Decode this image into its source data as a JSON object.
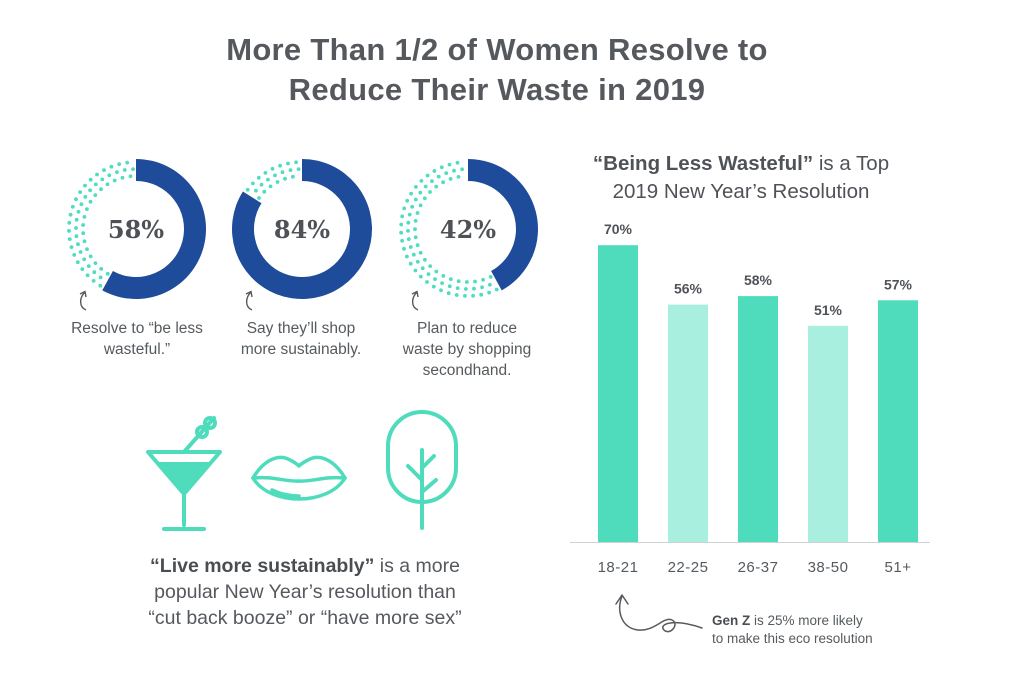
{
  "title": {
    "line1": "More Than 1/2 of Women Resolve to",
    "line2": "Reduce Their Waste in 2019"
  },
  "colors": {
    "navy": "#1f4c9a",
    "dots": "#4fdcc0",
    "bar_dark": "#4fdcbc",
    "bar_light": "#a8efdf",
    "icon": "#4fdcbc",
    "text": "#555a5e"
  },
  "donuts": [
    {
      "value": 58,
      "label": "58%",
      "caption_lines": [
        "Resolve to “be less",
        "wasteful.”"
      ]
    },
    {
      "value": 84,
      "label": "84%",
      "caption_lines": [
        "Say they’ll shop",
        "more sustainably."
      ]
    },
    {
      "value": 42,
      "label": "42%",
      "caption_lines": [
        "Plan to reduce",
        "waste by shopping",
        "secondhand."
      ]
    }
  ],
  "icons": [
    "martini-icon",
    "lips-icon",
    "tree-icon"
  ],
  "quote": {
    "bold": "“Live more sustainably”",
    "line1_rest": " is a more",
    "line2": "popular New Year’s resolution than",
    "line3": "“cut back booze” or “have more sex”"
  },
  "chart_title": {
    "bold": "“Being Less Wasteful”",
    "rest": " is a Top",
    "line2": "2019 New Year’s Resolution"
  },
  "chart_data": {
    "type": "bar",
    "categories": [
      "18-21",
      "22-25",
      "26-37",
      "38-50",
      "51+"
    ],
    "values": [
      70,
      56,
      58,
      51,
      57
    ],
    "value_labels": [
      "70%",
      "56%",
      "58%",
      "51%",
      "57%"
    ],
    "bar_shades": [
      "dark",
      "light",
      "dark",
      "light",
      "dark"
    ],
    "ylim": [
      0,
      75
    ],
    "grid": false,
    "title": "“Being Less Wasteful” is a Top 2019 New Year’s Resolution",
    "xlabel": "",
    "ylabel": ""
  },
  "note": {
    "bold": "Gen Z",
    "rest": " is 25% more likely",
    "line2": "to make this eco resolution"
  }
}
